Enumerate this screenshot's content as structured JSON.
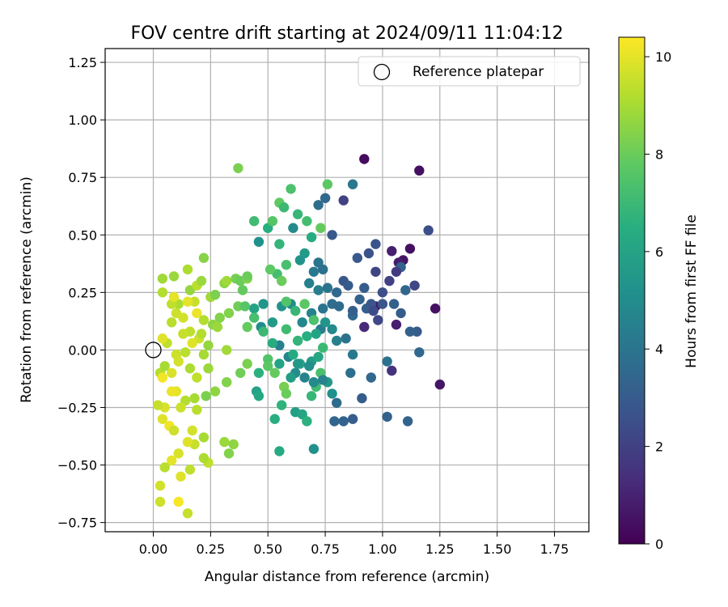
{
  "chart_data": {
    "type": "scatter",
    "title": "FOV centre drift starting at 2024/09/11 11:04:12",
    "xlabel": "Angular distance from reference (arcmin)",
    "ylabel": "Rotation from reference (arcmin)",
    "xlim": [
      -0.21,
      1.9
    ],
    "ylim": [
      -0.79,
      1.31
    ],
    "xticks": [
      "0.00",
      "0.25",
      "0.50",
      "0.75",
      "1.00",
      "1.25",
      "1.50",
      "1.75"
    ],
    "xtick_values": [
      0,
      0.25,
      0.5,
      0.75,
      1.0,
      1.25,
      1.5,
      1.75
    ],
    "yticks": [
      "−0.75",
      "−0.50",
      "−0.25",
      "0.00",
      "0.25",
      "0.50",
      "0.75",
      "1.00",
      "1.25"
    ],
    "ytick_values": [
      -0.75,
      -0.5,
      -0.25,
      0,
      0.25,
      0.5,
      0.75,
      1.0,
      1.25
    ],
    "grid": true,
    "legend": {
      "position": "top-right",
      "entries": [
        "Reference platepar"
      ]
    },
    "reference_point": {
      "label": "Reference platepar",
      "x": 0.0,
      "y": 0.0
    },
    "colorbar": {
      "label": "Hours from first FF file",
      "range": [
        0,
        10.4
      ],
      "colormap": "viridis",
      "ticks": [
        "0",
        "2",
        "4",
        "6",
        "8",
        "10"
      ],
      "tick_values": [
        0,
        2,
        4,
        6,
        8,
        10
      ]
    },
    "points": [
      [
        0.92,
        0.83,
        0.3
      ],
      [
        1.16,
        0.78,
        0.4
      ],
      [
        1.12,
        0.44,
        0.5
      ],
      [
        1.09,
        0.39,
        0.6
      ],
      [
        1.07,
        0.38,
        0.8
      ],
      [
        1.04,
        0.43,
        0.9
      ],
      [
        1.23,
        0.18,
        0.5
      ],
      [
        1.25,
        -0.15,
        0.6
      ],
      [
        0.97,
        0.19,
        0.7
      ],
      [
        1.06,
        0.11,
        0.9
      ],
      [
        1.04,
        -0.09,
        1.5
      ],
      [
        0.92,
        0.1,
        1.2
      ],
      [
        0.83,
        0.65,
        2.0
      ],
      [
        1.2,
        0.52,
        2.5
      ],
      [
        1.14,
        0.28,
        2.2
      ],
      [
        1.15,
        0.08,
        3.0
      ],
      [
        1.16,
        -0.01,
        3.5
      ],
      [
        1.11,
        -0.31,
        3.3
      ],
      [
        1.02,
        -0.29,
        3.2
      ],
      [
        0.91,
        -0.21,
        3.0
      ],
      [
        0.87,
        -0.3,
        3.1
      ],
      [
        0.83,
        -0.31,
        3.3
      ],
      [
        0.79,
        -0.31,
        3.4
      ],
      [
        0.94,
        0.42,
        2.6
      ],
      [
        0.97,
        0.46,
        2.7
      ],
      [
        0.89,
        0.4,
        2.9
      ],
      [
        0.97,
        0.34,
        2.1
      ],
      [
        1.0,
        0.2,
        2.8
      ],
      [
        1.05,
        0.2,
        3.2
      ],
      [
        1.1,
        0.26,
        3.4
      ],
      [
        1.08,
        0.36,
        3.2
      ],
      [
        1.02,
        -0.05,
        3.9
      ],
      [
        0.95,
        -0.12,
        3.5
      ],
      [
        0.86,
        -0.1,
        3.8
      ],
      [
        0.8,
        -0.23,
        3.6
      ],
      [
        0.87,
        0.72,
        4.1
      ],
      [
        0.75,
        0.66,
        3.5
      ],
      [
        0.72,
        0.63,
        3.7
      ],
      [
        0.78,
        0.5,
        2.9
      ],
      [
        0.83,
        0.3,
        2.8
      ],
      [
        0.85,
        0.28,
        3.0
      ],
      [
        0.8,
        0.25,
        3.5
      ],
      [
        0.78,
        0.2,
        3.7
      ],
      [
        0.74,
        0.18,
        4.0
      ],
      [
        0.9,
        0.22,
        3.3
      ],
      [
        0.93,
        0.18,
        3.1
      ],
      [
        0.87,
        0.15,
        3.6
      ],
      [
        0.84,
        0.05,
        3.9
      ],
      [
        0.87,
        -0.02,
        4.2
      ],
      [
        0.8,
        0.04,
        4.5
      ],
      [
        0.73,
        0.09,
        4.3
      ],
      [
        0.69,
        0.16,
        4.6
      ],
      [
        0.65,
        0.12,
        4.8
      ],
      [
        0.6,
        0.2,
        5.0
      ],
      [
        0.56,
        0.19,
        5.3
      ],
      [
        0.52,
        0.12,
        5.6
      ],
      [
        0.47,
        0.1,
        5.0
      ],
      [
        0.48,
        0.2,
        5.4
      ],
      [
        0.44,
        0.18,
        6.0
      ],
      [
        0.55,
        0.02,
        4.5
      ],
      [
        0.59,
        -0.03,
        4.7
      ],
      [
        0.62,
        -0.1,
        5.0
      ],
      [
        0.66,
        -0.12,
        4.6
      ],
      [
        0.7,
        -0.43,
        5.2
      ],
      [
        0.55,
        -0.44,
        6.3
      ],
      [
        0.53,
        -0.3,
        6.5
      ],
      [
        0.56,
        -0.24,
        6.7
      ],
      [
        0.62,
        -0.27,
        5.8
      ],
      [
        0.65,
        -0.28,
        6.1
      ],
      [
        0.67,
        -0.31,
        6.6
      ],
      [
        0.69,
        -0.2,
        6.9
      ],
      [
        0.71,
        -0.16,
        7.1
      ],
      [
        0.73,
        -0.1,
        7.3
      ],
      [
        0.76,
        -0.14,
        5.5
      ],
      [
        0.78,
        -0.19,
        5.2
      ],
      [
        0.61,
        0.53,
        4.9
      ],
      [
        0.64,
        0.39,
        5.3
      ],
      [
        0.66,
        0.42,
        5.6
      ],
      [
        0.68,
        0.29,
        4.5
      ],
      [
        0.7,
        0.34,
        4.2
      ],
      [
        0.72,
        0.38,
        4.0
      ],
      [
        0.74,
        0.35,
        3.8
      ],
      [
        0.78,
        0.09,
        4.9
      ],
      [
        0.75,
        0.12,
        5.4
      ],
      [
        0.71,
        0.07,
        6.0
      ],
      [
        0.67,
        0.06,
        6.5
      ],
      [
        0.63,
        0.04,
        6.8
      ],
      [
        0.58,
        0.09,
        7.1
      ],
      [
        0.61,
        -0.02,
        6.3
      ],
      [
        0.64,
        -0.06,
        6.0
      ],
      [
        0.69,
        -0.05,
        5.7
      ],
      [
        0.72,
        -0.03,
        6.2
      ],
      [
        0.74,
        0.01,
        7.0
      ],
      [
        0.7,
        0.13,
        7.4
      ],
      [
        0.66,
        0.2,
        7.7
      ],
      [
        0.62,
        0.17,
        6.9
      ],
      [
        0.58,
        0.21,
        7.5
      ],
      [
        0.54,
        0.33,
        7.2
      ],
      [
        0.51,
        0.35,
        7.8
      ],
      [
        0.56,
        0.3,
        8.0
      ],
      [
        0.58,
        0.37,
        7.3
      ],
      [
        0.55,
        0.46,
        6.8
      ],
      [
        0.5,
        0.53,
        6.5
      ],
      [
        0.52,
        0.56,
        7.6
      ],
      [
        0.46,
        0.47,
        5.2
      ],
      [
        0.44,
        0.56,
        7.1
      ],
      [
        0.55,
        0.64,
        7.8
      ],
      [
        0.57,
        0.62,
        7.0
      ],
      [
        0.6,
        0.7,
        7.4
      ],
      [
        0.63,
        0.59,
        6.9
      ],
      [
        0.67,
        0.56,
        7.2
      ],
      [
        0.69,
        0.49,
        6.4
      ],
      [
        0.73,
        0.53,
        7.9
      ],
      [
        0.76,
        0.72,
        7.7
      ],
      [
        0.5,
        -0.04,
        7.5
      ],
      [
        0.46,
        -0.1,
        6.6
      ],
      [
        0.45,
        -0.18,
        5.9
      ],
      [
        0.46,
        -0.2,
        6.2
      ],
      [
        0.5,
        -0.07,
        7.7
      ],
      [
        0.53,
        -0.1,
        7.9
      ],
      [
        0.57,
        -0.16,
        8.2
      ],
      [
        0.58,
        -0.19,
        8.0
      ],
      [
        0.41,
        -0.06,
        8.3
      ],
      [
        0.38,
        -0.1,
        8.1
      ],
      [
        0.32,
        -0.14,
        8.4
      ],
      [
        0.35,
        -0.41,
        8.6
      ],
      [
        0.31,
        -0.4,
        8.8
      ],
      [
        0.33,
        -0.45,
        8.4
      ],
      [
        0.27,
        -0.18,
        8.6
      ],
      [
        0.23,
        -0.2,
        8.3
      ],
      [
        0.22,
        -0.38,
        9.0
      ],
      [
        0.24,
        -0.49,
        9.4
      ],
      [
        0.22,
        -0.47,
        9.1
      ],
      [
        0.18,
        -0.41,
        9.5
      ],
      [
        0.15,
        -0.4,
        9.9
      ],
      [
        0.17,
        -0.35,
        9.7
      ],
      [
        0.19,
        -0.26,
        9.3
      ],
      [
        0.18,
        -0.21,
        9.0
      ],
      [
        0.14,
        -0.22,
        9.2
      ],
      [
        0.12,
        -0.25,
        9.6
      ],
      [
        0.1,
        -0.18,
        10.0
      ],
      [
        0.08,
        -0.18,
        10.1
      ],
      [
        0.05,
        -0.25,
        9.8
      ],
      [
        0.04,
        -0.3,
        9.9
      ],
      [
        0.07,
        -0.33,
        10.2
      ],
      [
        0.09,
        -0.35,
        9.6
      ],
      [
        0.11,
        -0.45,
        9.8
      ],
      [
        0.08,
        -0.48,
        10.0
      ],
      [
        0.05,
        -0.51,
        9.3
      ],
      [
        0.03,
        -0.59,
        9.7
      ],
      [
        0.03,
        -0.66,
        9.6
      ],
      [
        0.11,
        -0.66,
        10.3
      ],
      [
        0.15,
        -0.71,
        9.5
      ],
      [
        0.12,
        -0.55,
        9.9
      ],
      [
        0.16,
        -0.52,
        9.4
      ],
      [
        0.02,
        -0.24,
        9.5
      ],
      [
        0.03,
        -0.1,
        9.2
      ],
      [
        0.05,
        -0.07,
        9.0
      ],
      [
        0.04,
        -0.12,
        10.2
      ],
      [
        0.08,
        -0.1,
        9.8
      ],
      [
        0.1,
        -0.02,
        9.6
      ],
      [
        0.06,
        0.03,
        9.4
      ],
      [
        0.04,
        0.05,
        9.9
      ],
      [
        0.08,
        0.12,
        9.3
      ],
      [
        0.1,
        0.16,
        9.6
      ],
      [
        0.11,
        0.2,
        9.1
      ],
      [
        0.08,
        0.2,
        9.4
      ],
      [
        0.09,
        0.23,
        10.0
      ],
      [
        0.04,
        0.25,
        9.2
      ],
      [
        0.04,
        0.31,
        8.9
      ],
      [
        0.09,
        0.32,
        8.8
      ],
      [
        0.15,
        0.35,
        9.1
      ],
      [
        0.16,
        0.26,
        8.7
      ],
      [
        0.19,
        0.28,
        9.3
      ],
      [
        0.21,
        0.3,
        8.8
      ],
      [
        0.22,
        0.4,
        8.5
      ],
      [
        0.18,
        0.21,
        9.5
      ],
      [
        0.15,
        0.21,
        10.0
      ],
      [
        0.13,
        0.14,
        9.7
      ],
      [
        0.16,
        0.08,
        9.4
      ],
      [
        0.19,
        0.16,
        10.1
      ],
      [
        0.22,
        0.13,
        9.2
      ],
      [
        0.26,
        0.11,
        8.6
      ],
      [
        0.29,
        0.14,
        8.4
      ],
      [
        0.25,
        0.23,
        8.9
      ],
      [
        0.27,
        0.24,
        8.3
      ],
      [
        0.31,
        0.29,
        8.6
      ],
      [
        0.32,
        0.3,
        8.9
      ],
      [
        0.36,
        0.31,
        8.2
      ],
      [
        0.38,
        0.3,
        8.0
      ],
      [
        0.41,
        0.31,
        8.5
      ],
      [
        0.39,
        0.26,
        7.9
      ],
      [
        0.37,
        0.19,
        8.1
      ],
      [
        0.4,
        0.19,
        7.6
      ],
      [
        0.44,
        0.14,
        7.3
      ],
      [
        0.41,
        0.1,
        7.9
      ],
      [
        0.33,
        0.16,
        8.4
      ],
      [
        0.28,
        0.1,
        8.8
      ],
      [
        0.2,
        0.05,
        9.6
      ],
      [
        0.17,
        0.03,
        9.9
      ],
      [
        0.13,
        0.07,
        9.5
      ],
      [
        0.14,
        -0.01,
        9.3
      ],
      [
        0.11,
        -0.05,
        9.7
      ],
      [
        0.16,
        -0.08,
        9.1
      ],
      [
        0.19,
        -0.12,
        9.4
      ],
      [
        0.22,
        -0.02,
        9.0
      ],
      [
        0.24,
        0.02,
        8.7
      ],
      [
        0.24,
        -0.08,
        8.8
      ],
      [
        0.21,
        0.07,
        9.2
      ],
      [
        0.32,
        0.0,
        8.9
      ],
      [
        0.37,
        0.79,
        8.3
      ],
      [
        0.41,
        0.32,
        8.0
      ],
      [
        0.48,
        0.08,
        7.0
      ],
      [
        0.52,
        0.03,
        6.4
      ],
      [
        0.55,
        -0.06,
        6.0
      ],
      [
        0.6,
        -0.12,
        5.8
      ],
      [
        0.63,
        -0.06,
        5.5
      ],
      [
        0.68,
        -0.07,
        5.1
      ],
      [
        0.7,
        -0.14,
        4.9
      ],
      [
        0.74,
        -0.13,
        4.6
      ],
      [
        0.72,
        0.26,
        4.4
      ],
      [
        0.76,
        0.27,
        4.0
      ],
      [
        0.81,
        0.19,
        3.6
      ],
      [
        0.87,
        0.17,
        3.2
      ],
      [
        0.92,
        0.27,
        3.0
      ],
      [
        0.95,
        0.2,
        2.8
      ],
      [
        0.96,
        0.17,
        2.4
      ],
      [
        0.98,
        0.13,
        2.2
      ],
      [
        1.0,
        0.25,
        2.5
      ],
      [
        1.03,
        0.3,
        2.0
      ],
      [
        1.06,
        0.34,
        1.8
      ],
      [
        1.08,
        0.16,
        3.0
      ],
      [
        1.12,
        0.08,
        3.2
      ]
    ]
  }
}
